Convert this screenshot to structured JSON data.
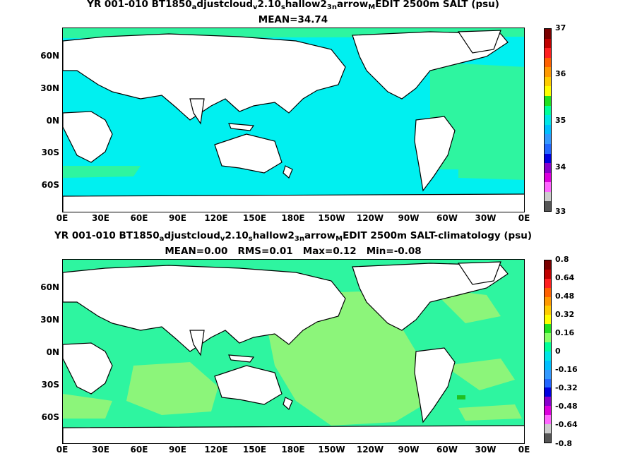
{
  "panel1": {
    "title_segments": [
      {
        "t": "YR 001-010 BT1850"
      },
      {
        "t": "a",
        "sub": true
      },
      {
        "t": "djustcloud"
      },
      {
        "t": "v",
        "sub": true
      },
      {
        "t": "2.10"
      },
      {
        "t": "s",
        "sub": true
      },
      {
        "t": "hallow2"
      },
      {
        "t": "3",
        "sub": true
      },
      {
        "t": "n",
        "sub": true
      },
      {
        "t": "arrow"
      },
      {
        "t": "M",
        "sub": true
      },
      {
        "t": "EDIT 2500m SALT (psu)"
      }
    ],
    "stats": "MEAN=34.74",
    "colorbar_labels": [
      "37",
      "36",
      "35",
      "34",
      "33"
    ],
    "colorbar_colors": [
      "#7a0000",
      "#c00000",
      "#ff2020",
      "#ff6000",
      "#ff9900",
      "#ffcc00",
      "#ffff00",
      "#20e020",
      "#00ff99",
      "#00e6e6",
      "#00bfff",
      "#3399ff",
      "#2266ff",
      "#0000e0",
      "#8800cc",
      "#dd00dd",
      "#ff66ff",
      "#cccccc",
      "#555555"
    ],
    "ocean_color": "#00f0f0",
    "atlantic_color": "#2ef5a0"
  },
  "panel2": {
    "title_segments": [
      {
        "t": "YR 001-010 BT1850"
      },
      {
        "t": "a",
        "sub": true
      },
      {
        "t": "djustcloud"
      },
      {
        "t": "v",
        "sub": true
      },
      {
        "t": "2.10"
      },
      {
        "t": "s",
        "sub": true
      },
      {
        "t": "hallow2"
      },
      {
        "t": "3",
        "sub": true
      },
      {
        "t": "n",
        "sub": true
      },
      {
        "t": "arrow"
      },
      {
        "t": "M",
        "sub": true
      },
      {
        "t": "EDIT 2500m SALT-climatology (psu)"
      }
    ],
    "stats": "MEAN=0.00   RMS=0.01   Max=0.12   Min=-0.08",
    "colorbar_labels": [
      "0.8",
      "0.64",
      "0.48",
      "0.32",
      "0.16",
      "0",
      "-0.16",
      "-0.32",
      "-0.48",
      "-0.64",
      "-0.8"
    ],
    "colorbar_colors": [
      "#7a0000",
      "#c00000",
      "#ff2020",
      "#ff6000",
      "#ff9900",
      "#ffcc00",
      "#ffff00",
      "#20e020",
      "#88ff66",
      "#00ff99",
      "#00e6e6",
      "#00bfff",
      "#3399ff",
      "#2266ff",
      "#0000e0",
      "#8800cc",
      "#dd00dd",
      "#ff66ff",
      "#cccccc",
      "#555555"
    ],
    "ocean_color": "#2ef5a0",
    "patch_color": "#8cf57a"
  },
  "y_ticks": [
    "60N",
    "30N",
    "0N",
    "30S",
    "60S"
  ],
  "x_ticks": [
    "0E",
    "30E",
    "60E",
    "90E",
    "120E",
    "150E",
    "180E",
    "150W",
    "120W",
    "90W",
    "60W",
    "30W",
    "0E"
  ]
}
